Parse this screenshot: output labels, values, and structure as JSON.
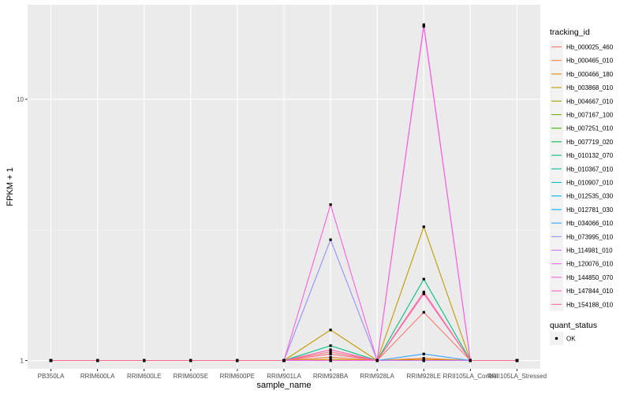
{
  "chart_data": {
    "type": "line",
    "title": "",
    "xlabel": "sample_name",
    "ylabel": "FPKM + 1",
    "y_scale": "log10",
    "ylim": [
      0.93,
      23
    ],
    "y_ticks": [
      1,
      10
    ],
    "y_tick_labels": [
      "1",
      "10"
    ],
    "categories": [
      "PB350LA",
      "RRIM600LA",
      "RRIM600LE",
      "RRIM600SE",
      "RRIM600PE",
      "RRIM901LA",
      "RRIM928BA",
      "RRIM928LA",
      "RRIM928LE",
      "RRII105LA_Control",
      "RRII105LA_Stressed"
    ],
    "grid": true,
    "legend_title": "tracking_id",
    "legend_position": "right",
    "series": [
      {
        "name": "Hb_000025_460",
        "color": "#F8766D",
        "values": [
          1,
          1,
          1,
          1,
          1,
          1,
          1.08,
          1,
          1.53,
          1,
          1
        ]
      },
      {
        "name": "Hb_000465_010",
        "color": "#EE8044",
        "values": [
          1,
          1,
          1,
          1,
          1,
          1,
          1.03,
          1,
          1.02,
          1,
          1
        ]
      },
      {
        "name": "Hb_000466_180",
        "color": "#DB8E00",
        "values": [
          1,
          1,
          1,
          1,
          1,
          1,
          1.01,
          1,
          1.01,
          1,
          1
        ]
      },
      {
        "name": "Hb_003868_010",
        "color": "#C09B00",
        "values": [
          1,
          1,
          1,
          1,
          1,
          1,
          1.31,
          1,
          3.25,
          1,
          1
        ]
      },
      {
        "name": "Hb_004667_010",
        "color": "#A3A500",
        "values": [
          1,
          1,
          1,
          1,
          1,
          1,
          1.0,
          1,
          1.0,
          1,
          1
        ]
      },
      {
        "name": "Hb_007167_100",
        "color": "#7CAE00",
        "values": [
          1,
          1,
          1,
          1,
          1,
          1,
          1.0,
          1,
          1.0,
          1,
          1
        ]
      },
      {
        "name": "Hb_007251_010",
        "color": "#39B600",
        "values": [
          1,
          1,
          1,
          1,
          1,
          1,
          1.0,
          1,
          1.0,
          1,
          1
        ]
      },
      {
        "name": "Hb_007719_020",
        "color": "#00BB4E",
        "values": [
          1,
          1,
          1,
          1,
          1,
          1,
          1.0,
          1,
          1.0,
          1,
          1
        ]
      },
      {
        "name": "Hb_010132_070",
        "color": "#00BF7D",
        "values": [
          1,
          1,
          1,
          1,
          1,
          1,
          1.14,
          1,
          2.05,
          1,
          1
        ]
      },
      {
        "name": "Hb_010367_010",
        "color": "#00C1A3",
        "values": [
          1,
          1,
          1,
          1,
          1,
          1,
          1.0,
          1,
          1.0,
          1,
          1
        ]
      },
      {
        "name": "Hb_010907_010",
        "color": "#00BFC4",
        "values": [
          1,
          1,
          1,
          1,
          1,
          1,
          1.0,
          1,
          1.0,
          1,
          1
        ]
      },
      {
        "name": "Hb_012535_030",
        "color": "#00BAE0",
        "values": [
          1,
          1,
          1,
          1,
          1,
          1,
          1.0,
          1,
          1.0,
          1,
          1
        ]
      },
      {
        "name": "Hb_012781_030",
        "color": "#00B0F6",
        "values": [
          1,
          1,
          1,
          1,
          1,
          1,
          1.0,
          1,
          1.0,
          1,
          1
        ]
      },
      {
        "name": "Hb_034066_010",
        "color": "#35A2FF",
        "values": [
          1,
          1,
          1,
          1,
          1,
          1,
          1.0,
          1,
          1.06,
          1,
          1
        ]
      },
      {
        "name": "Hb_073995_010",
        "color": "#9590FF",
        "values": [
          1,
          1,
          1,
          1,
          1,
          1,
          2.9,
          1,
          1.0,
          1,
          1
        ]
      },
      {
        "name": "Hb_114981_010",
        "color": "#C77CFF",
        "values": [
          1,
          1,
          1,
          1,
          1,
          1,
          1.0,
          1,
          1.0,
          1,
          1
        ]
      },
      {
        "name": "Hb_120076_010",
        "color": "#E76BF3",
        "values": [
          1,
          1,
          1,
          1,
          1,
          1,
          1.0,
          1,
          19.0,
          1,
          1
        ]
      },
      {
        "name": "Hb_144850_070",
        "color": "#FA62DB",
        "values": [
          1,
          1,
          1,
          1,
          1,
          1,
          3.95,
          1,
          19.3,
          1,
          1
        ]
      },
      {
        "name": "Hb_147844_010",
        "color": "#FF62BC",
        "values": [
          1,
          1,
          1,
          1,
          1,
          1,
          1.1,
          1,
          1.8,
          1,
          1
        ]
      },
      {
        "name": "Hb_154188_010",
        "color": "#FF6C91",
        "values": [
          1,
          1,
          1,
          1,
          1,
          1,
          1.06,
          1,
          1.83,
          1,
          1
        ]
      }
    ],
    "shape_legend": {
      "title": "quant_status",
      "items": [
        "OK"
      ]
    }
  }
}
